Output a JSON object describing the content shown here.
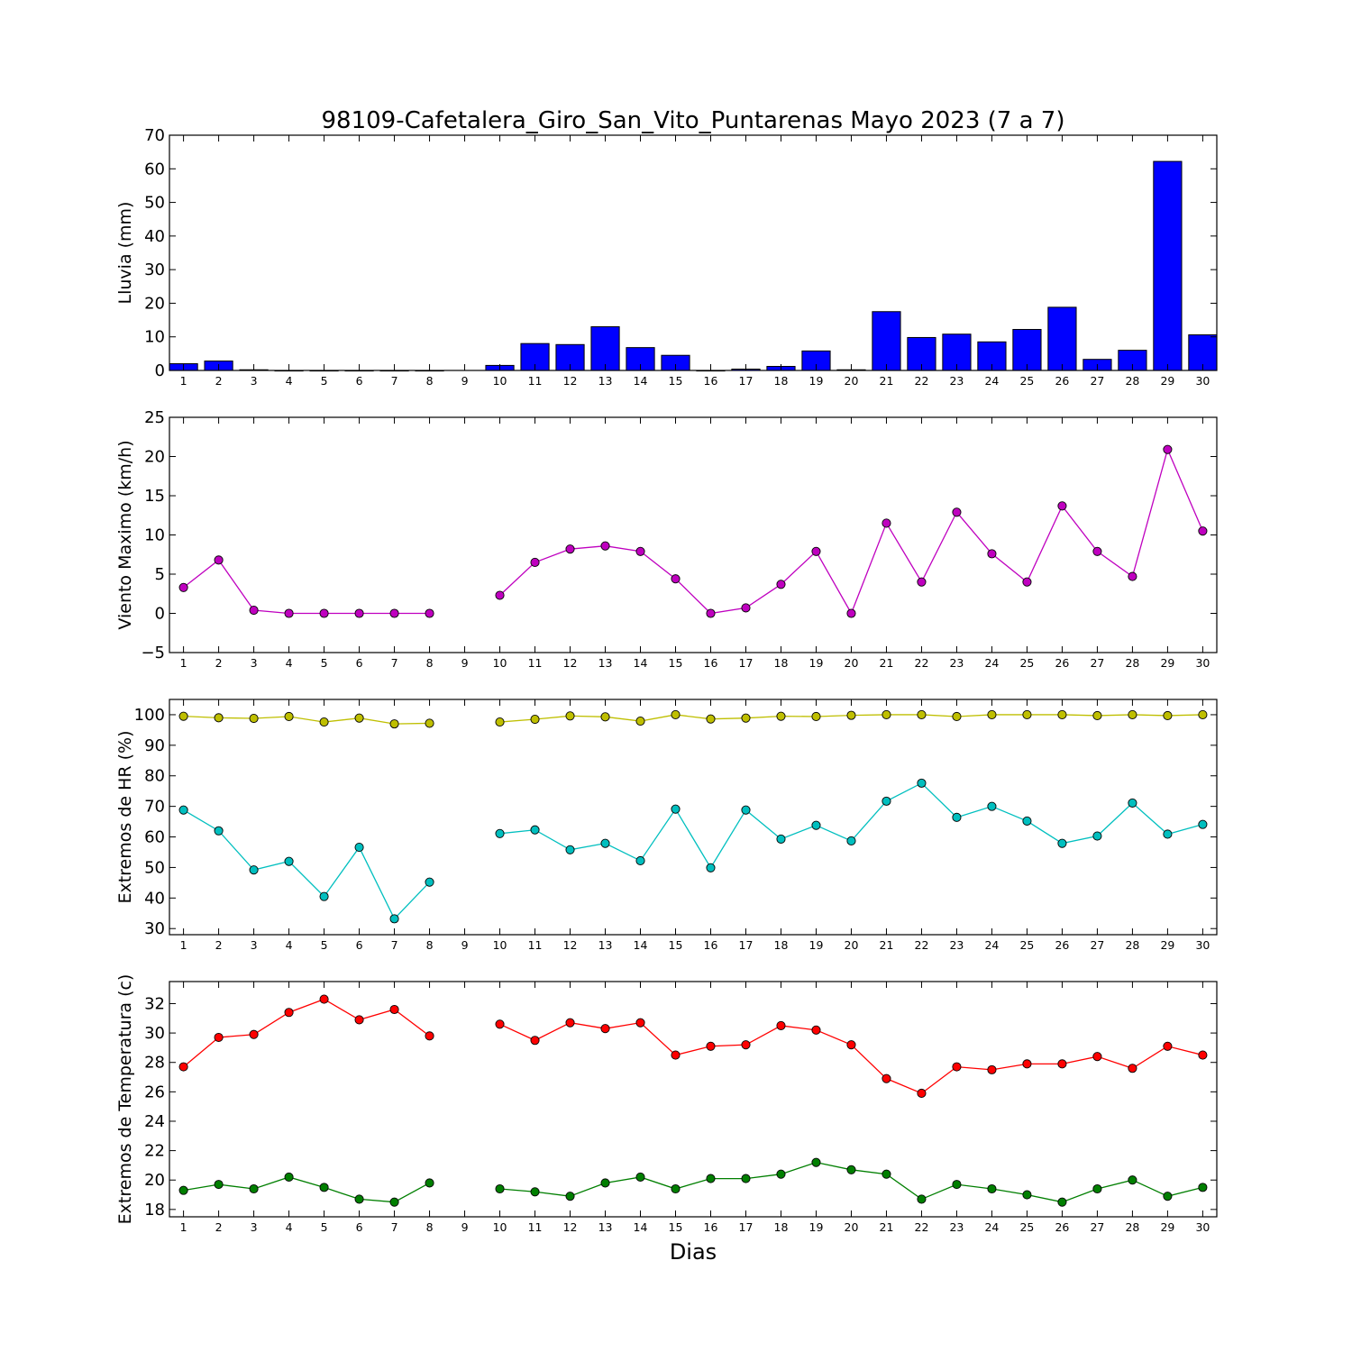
{
  "title": "98109-Cafetalera_Giro_San_Vito_Puntarenas Mayo 2023  (7 a 7)",
  "xlabel": "Dias",
  "days": [
    1,
    2,
    3,
    4,
    5,
    6,
    7,
    8,
    9,
    10,
    11,
    12,
    13,
    14,
    15,
    16,
    17,
    18,
    19,
    20,
    21,
    22,
    23,
    24,
    25,
    26,
    27,
    28,
    29,
    30
  ],
  "chart_data": [
    {
      "type": "bar",
      "ylabel": "Lluvia (mm)",
      "ylim": [
        0,
        70
      ],
      "yticks": [
        0,
        10,
        20,
        30,
        40,
        50,
        60,
        70
      ],
      "x": [
        1,
        2,
        3,
        4,
        5,
        6,
        7,
        8,
        9,
        10,
        11,
        12,
        13,
        14,
        15,
        16,
        17,
        18,
        19,
        20,
        21,
        22,
        23,
        24,
        25,
        26,
        27,
        28,
        29,
        30
      ],
      "series": [
        {
          "color": "#0000ff",
          "values": [
            2.0,
            2.8,
            0.2,
            0,
            0,
            0,
            0,
            0,
            null,
            1.5,
            8.0,
            7.7,
            13.0,
            6.8,
            4.5,
            0,
            0.4,
            1.2,
            5.8,
            0.2,
            17.5,
            9.8,
            10.8,
            8.5,
            12.2,
            18.8,
            3.3,
            6.0,
            62.2,
            10.6
          ]
        }
      ]
    },
    {
      "type": "line",
      "ylabel": "Viento Maximo (km/h)",
      "ylim": [
        -5,
        25
      ],
      "yticks": [
        -5,
        0,
        5,
        10,
        15,
        20,
        25
      ],
      "x": [
        1,
        2,
        3,
        4,
        5,
        6,
        7,
        8,
        9,
        10,
        11,
        12,
        13,
        14,
        15,
        16,
        17,
        18,
        19,
        20,
        21,
        22,
        23,
        24,
        25,
        26,
        27,
        28,
        29,
        30
      ],
      "series": [
        {
          "color": "#bf00bf",
          "values": [
            3.3,
            6.8,
            0.4,
            0,
            0,
            0,
            0,
            0,
            null,
            2.3,
            6.5,
            8.2,
            8.6,
            7.9,
            4.4,
            0,
            0.7,
            3.7,
            7.9,
            0,
            11.5,
            4.0,
            12.9,
            7.6,
            4.0,
            13.7,
            7.9,
            4.7,
            20.9,
            10.5
          ]
        }
      ]
    },
    {
      "type": "line",
      "ylabel": "Extremos de HR (%)",
      "ylim": [
        28,
        105
      ],
      "yticks": [
        30,
        40,
        50,
        60,
        70,
        80,
        90,
        100
      ],
      "x": [
        1,
        2,
        3,
        4,
        5,
        6,
        7,
        8,
        9,
        10,
        11,
        12,
        13,
        14,
        15,
        16,
        17,
        18,
        19,
        20,
        21,
        22,
        23,
        24,
        25,
        26,
        27,
        28,
        29,
        30
      ],
      "series": [
        {
          "color": "#bfbf00",
          "values": [
            99.5,
            99.0,
            98.8,
            99.4,
            97.6,
            98.9,
            97.0,
            97.2,
            null,
            97.6,
            98.5,
            99.6,
            99.3,
            97.9,
            100,
            98.6,
            98.9,
            99.5,
            99.4,
            99.8,
            100,
            100,
            99.4,
            100,
            100,
            100,
            99.7,
            100,
            99.7,
            100
          ]
        },
        {
          "color": "#00bfbf",
          "values": [
            68.8,
            62.0,
            49.2,
            52.0,
            40.5,
            56.6,
            33.2,
            45.2,
            null,
            61.1,
            62.3,
            55.8,
            57.9,
            52.2,
            69.1,
            49.9,
            68.8,
            59.3,
            63.8,
            58.7,
            71.7,
            77.6,
            66.4,
            70.0,
            65.2,
            57.9,
            60.3,
            71.1,
            60.9,
            64.1
          ]
        }
      ]
    },
    {
      "type": "line",
      "ylabel": "Extremos de Temperatura (c)",
      "ylim": [
        17.5,
        33.5
      ],
      "yticks": [
        18,
        20,
        22,
        24,
        26,
        28,
        30,
        32
      ],
      "x": [
        1,
        2,
        3,
        4,
        5,
        6,
        7,
        8,
        9,
        10,
        11,
        12,
        13,
        14,
        15,
        16,
        17,
        18,
        19,
        20,
        21,
        22,
        23,
        24,
        25,
        26,
        27,
        28,
        29,
        30
      ],
      "series": [
        {
          "color": "#ff0000",
          "values": [
            27.7,
            29.7,
            29.9,
            31.4,
            32.3,
            30.9,
            31.6,
            29.8,
            null,
            30.6,
            29.5,
            30.7,
            30.3,
            30.7,
            28.5,
            29.1,
            29.2,
            30.5,
            30.2,
            29.2,
            26.9,
            25.9,
            27.7,
            27.5,
            27.9,
            27.9,
            28.4,
            27.6,
            29.1,
            28.5
          ]
        },
        {
          "color": "#007f00",
          "values": [
            19.3,
            19.7,
            19.4,
            20.2,
            19.5,
            18.7,
            18.5,
            19.8,
            null,
            19.4,
            19.2,
            18.9,
            19.8,
            20.2,
            19.4,
            20.1,
            20.1,
            20.4,
            21.2,
            20.7,
            20.4,
            18.7,
            19.7,
            19.4,
            19.0,
            18.5,
            19.4,
            20.0,
            18.9,
            19.5
          ]
        }
      ]
    }
  ]
}
